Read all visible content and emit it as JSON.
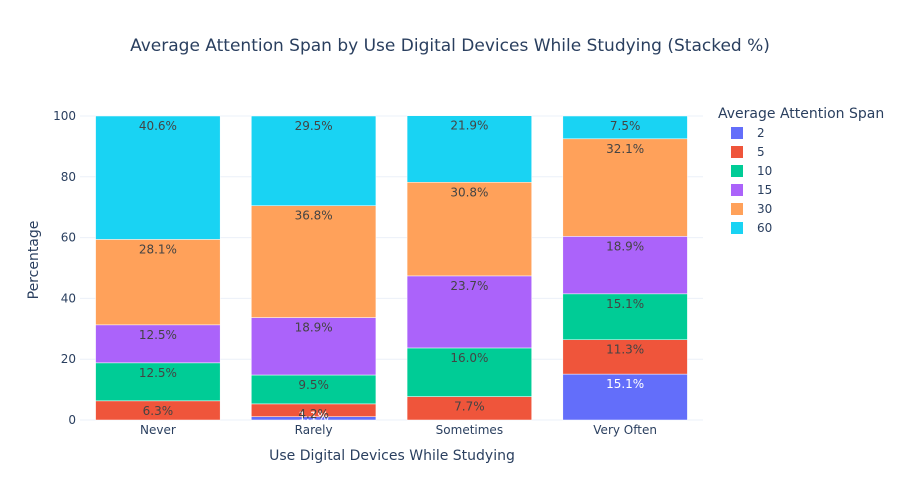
{
  "chart_data": {
    "type": "bar",
    "stacked": true,
    "title": "Average Attention Span by Use Digital Devices While Studying (Stacked %)",
    "xlabel": "Use Digital Devices While Studying",
    "ylabel": "Percentage",
    "ylim": [
      0,
      100
    ],
    "yticks": [
      0,
      20,
      40,
      60,
      80,
      100
    ],
    "grid": true,
    "legend_title": "Average Attention Span",
    "legend_position": "top-right",
    "categories": [
      "Never",
      "Rarely",
      "Sometimes",
      "Very Often"
    ],
    "series": [
      {
        "name": "2",
        "color": "#636efa",
        "values": [
          0.0,
          1.1,
          0.0,
          15.1
        ],
        "labels": [
          "",
          "1.1%",
          "",
          "15.1%"
        ],
        "label_color": "#ffffff"
      },
      {
        "name": "5",
        "color": "#ef553b",
        "values": [
          6.3,
          4.2,
          7.7,
          11.3
        ],
        "labels": [
          "6.3%",
          "4.2%",
          "7.7%",
          "11.3%"
        ],
        "label_color": "#444444"
      },
      {
        "name": "10",
        "color": "#00cc96",
        "values": [
          12.5,
          9.5,
          16.0,
          15.1
        ],
        "labels": [
          "12.5%",
          "9.5%",
          "16.0%",
          "15.1%"
        ],
        "label_color": "#444444"
      },
      {
        "name": "15",
        "color": "#ab63fa",
        "values": [
          12.5,
          18.9,
          23.7,
          18.9
        ],
        "labels": [
          "12.5%",
          "18.9%",
          "23.7%",
          "18.9%"
        ],
        "label_color": "#444444"
      },
      {
        "name": "30",
        "color": "#ffa15a",
        "values": [
          28.1,
          36.8,
          30.8,
          32.1
        ],
        "labels": [
          "28.1%",
          "36.8%",
          "30.8%",
          "32.1%"
        ],
        "label_color": "#444444"
      },
      {
        "name": "60",
        "color": "#19d3f3",
        "values": [
          40.6,
          29.5,
          21.9,
          7.5
        ],
        "labels": [
          "40.6%",
          "29.5%",
          "21.9%",
          "7.5%"
        ],
        "label_color": "#444444"
      }
    ]
  }
}
